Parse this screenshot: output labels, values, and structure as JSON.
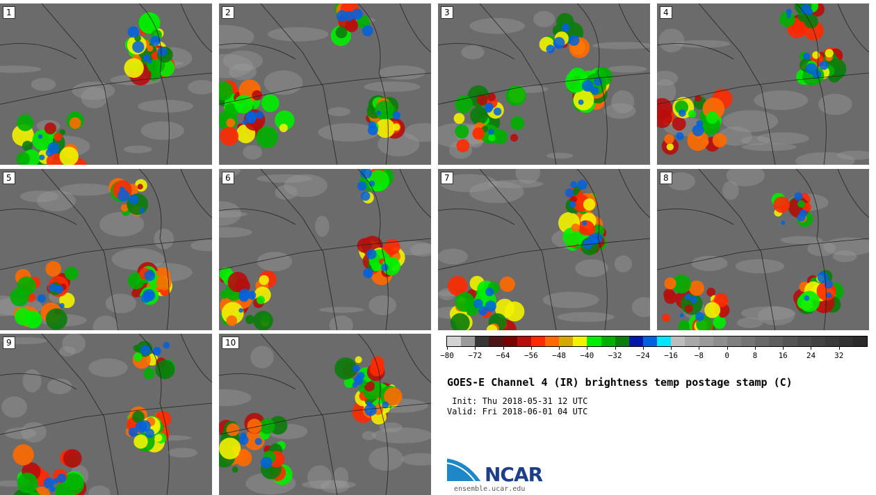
{
  "panels": [
    {
      "number": "1"
    },
    {
      "number": "2"
    },
    {
      "number": "3"
    },
    {
      "number": "4"
    },
    {
      "number": "5"
    },
    {
      "number": "6"
    },
    {
      "number": "7"
    },
    {
      "number": "8"
    },
    {
      "number": "9"
    },
    {
      "number": "10"
    }
  ],
  "colorbar": {
    "colors": [
      "#d3d3d3",
      "#9a9a9a",
      "#373737",
      "#4d1515",
      "#7a0000",
      "#b80d0d",
      "#ff2a00",
      "#ff6a00",
      "#d4a800",
      "#f2f200",
      "#00ee00",
      "#00b000",
      "#0b7d0b",
      "#0018a8",
      "#0062e0",
      "#00e6ff",
      "#bdbdbd",
      "#a8a8a8",
      "#9a9a9a",
      "#8d8d8d",
      "#808080",
      "#747474",
      "#696969",
      "#5f5f5f",
      "#555555",
      "#4b4b4b",
      "#424242",
      "#3a3a3a",
      "#323232",
      "#2a2a2a"
    ],
    "ticks": [
      "−80",
      "−72",
      "−64",
      "−56",
      "−48",
      "−40",
      "−32",
      "−24",
      "−16",
      "−8",
      "0",
      "8",
      "16",
      "24",
      "32"
    ]
  },
  "title": "GOES-E Channel 4 (IR) brightness temp postage stamp (C)",
  "init": " Init: Thu 2018-05-31 12 UTC",
  "valid": "Valid: Fri 2018-06-01 04 UTC",
  "logo_text": "NCAR",
  "site": "ensemble.ucar.edu"
}
